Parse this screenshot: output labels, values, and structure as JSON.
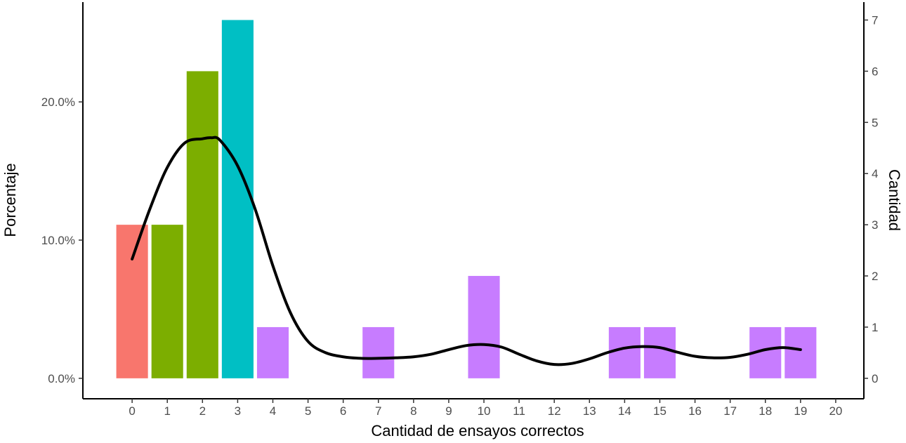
{
  "chart_data": {
    "type": "bar",
    "xlabel": "Cantidad de ensayos correctos",
    "ylabel_left": "Porcentaje",
    "ylabel_right": "Cantidad",
    "x_ticks": [
      "0",
      "1",
      "2",
      "3",
      "4",
      "5",
      "6",
      "7",
      "8",
      "9",
      "10",
      "11",
      "12",
      "13",
      "14",
      "15",
      "16",
      "17",
      "18",
      "19",
      "20"
    ],
    "left_ticks": [
      "0.0%",
      "10.0%",
      "20.0%"
    ],
    "right_ticks": [
      "0",
      "1",
      "2",
      "3",
      "4",
      "5",
      "6",
      "7"
    ],
    "x_range": [
      -1.4,
      20.8
    ],
    "count_range": [
      -0.4,
      7.35
    ],
    "total": 27,
    "bars": [
      {
        "x": 0,
        "count": 3,
        "color": "#F8766D"
      },
      {
        "x": 1,
        "count": 3,
        "color": "#7CAE00"
      },
      {
        "x": 2,
        "count": 6,
        "color": "#7CAE00"
      },
      {
        "x": 3,
        "count": 7,
        "color": "#00BFC4"
      },
      {
        "x": 4,
        "count": 1,
        "color": "#C77CFF"
      },
      {
        "x": 7,
        "count": 1,
        "color": "#C77CFF"
      },
      {
        "x": 10,
        "count": 2,
        "color": "#C77CFF"
      },
      {
        "x": 14,
        "count": 1,
        "color": "#C77CFF"
      },
      {
        "x": 15,
        "count": 1,
        "color": "#C77CFF"
      },
      {
        "x": 18,
        "count": 1,
        "color": "#C77CFF"
      },
      {
        "x": 19,
        "count": 1,
        "color": "#C77CFF"
      }
    ],
    "density_curve": {
      "color": "#000000",
      "x": [
        0,
        0.5,
        1,
        1.5,
        2,
        2.25,
        2.5,
        3,
        3.5,
        4,
        4.5,
        5,
        5.5,
        6,
        6.5,
        7,
        7.5,
        8,
        8.5,
        9,
        9.5,
        10,
        10.5,
        11,
        11.5,
        12,
        12.5,
        13,
        13.5,
        14,
        14.5,
        15,
        15.5,
        16,
        16.5,
        17,
        17.5,
        18,
        18.5,
        19
      ],
      "y": [
        2.33,
        3.3,
        4.12,
        4.6,
        4.68,
        4.7,
        4.65,
        4.15,
        3.3,
        2.2,
        1.28,
        0.72,
        0.5,
        0.42,
        0.39,
        0.39,
        0.4,
        0.42,
        0.47,
        0.56,
        0.64,
        0.66,
        0.61,
        0.47,
        0.34,
        0.27,
        0.29,
        0.38,
        0.5,
        0.59,
        0.62,
        0.6,
        0.51,
        0.43,
        0.4,
        0.41,
        0.47,
        0.56,
        0.6,
        0.56
      ]
    },
    "grid": false,
    "legend": "none"
  }
}
